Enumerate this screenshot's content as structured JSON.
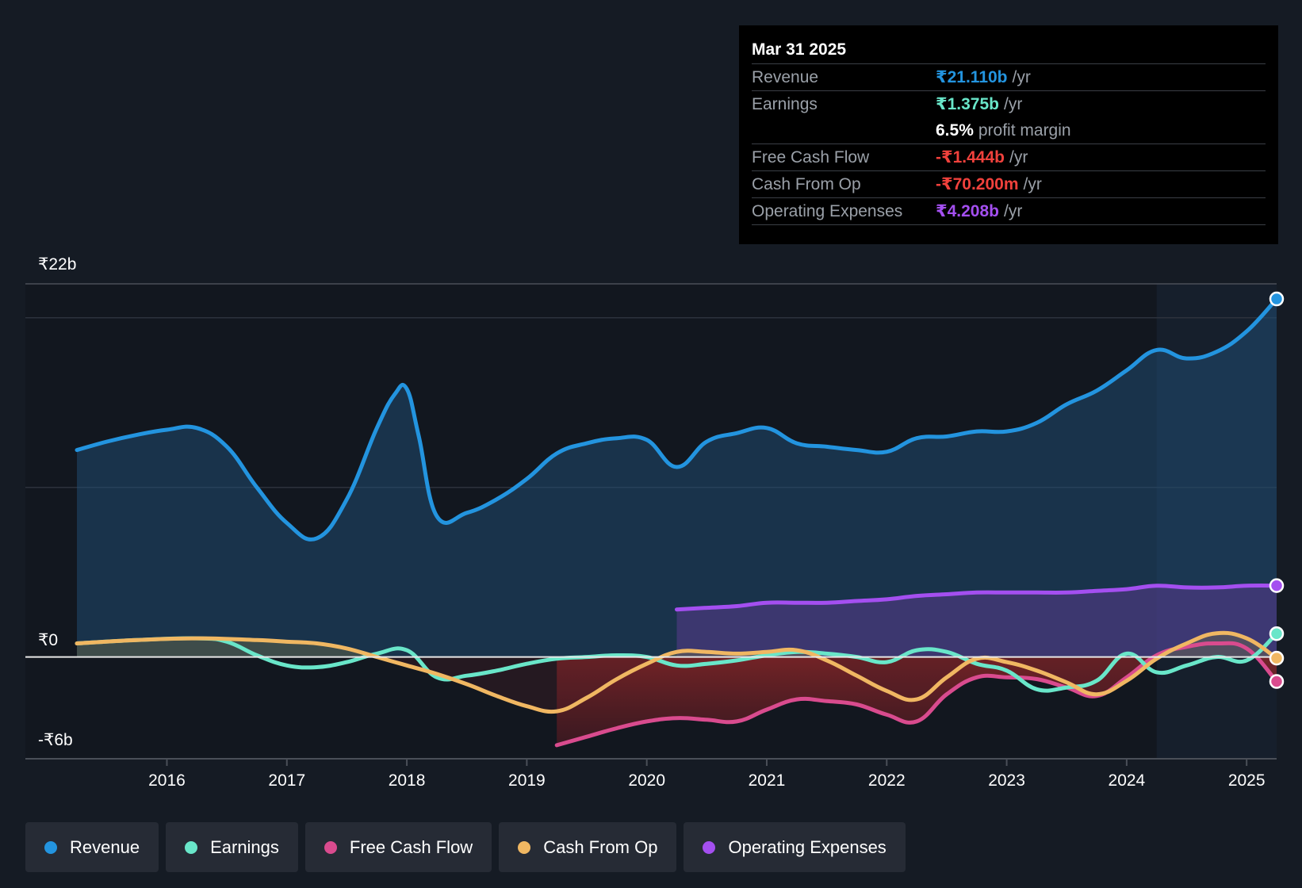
{
  "chart_data": {
    "type": "area",
    "currency": "₹",
    "y_unit": "b",
    "ylim": [
      -6,
      22
    ],
    "ylabels": [
      {
        "value": 22,
        "label": "₹22b"
      },
      {
        "value": 0,
        "label": "₹0"
      },
      {
        "value": -6,
        "label": "-₹6b"
      }
    ],
    "xlim": [
      2015.25,
      2025.25
    ],
    "xticks": [
      {
        "value": 2016,
        "label": "2016"
      },
      {
        "value": 2017,
        "label": "2017"
      },
      {
        "value": 2018,
        "label": "2018"
      },
      {
        "value": 2019,
        "label": "2019"
      },
      {
        "value": 2020,
        "label": "2020"
      },
      {
        "value": 2021,
        "label": "2021"
      },
      {
        "value": 2022,
        "label": "2022"
      },
      {
        "value": 2023,
        "label": "2023"
      },
      {
        "value": 2024,
        "label": "2024"
      },
      {
        "value": 2025,
        "label": "2025"
      }
    ],
    "highlight_start": 2024.25,
    "series": [
      {
        "key": "revenue",
        "name": "Revenue",
        "color": "#2394df",
        "fill": true,
        "points": [
          [
            2015.25,
            12.2
          ],
          [
            2015.5,
            12.7
          ],
          [
            2015.75,
            13.1
          ],
          [
            2016.0,
            13.4
          ],
          [
            2016.25,
            13.5
          ],
          [
            2016.5,
            12.4
          ],
          [
            2016.75,
            10.0
          ],
          [
            2017.0,
            7.9
          ],
          [
            2017.25,
            7.0
          ],
          [
            2017.5,
            9.3
          ],
          [
            2017.75,
            13.5
          ],
          [
            2017.9,
            15.5
          ],
          [
            2018.0,
            15.8
          ],
          [
            2018.1,
            13.0
          ],
          [
            2018.25,
            8.3
          ],
          [
            2018.5,
            8.5
          ],
          [
            2018.75,
            9.3
          ],
          [
            2019.0,
            10.5
          ],
          [
            2019.25,
            12.0
          ],
          [
            2019.5,
            12.6
          ],
          [
            2019.75,
            12.9
          ],
          [
            2020.0,
            12.8
          ],
          [
            2020.25,
            11.2
          ],
          [
            2020.5,
            12.7
          ],
          [
            2020.75,
            13.2
          ],
          [
            2021.0,
            13.5
          ],
          [
            2021.25,
            12.6
          ],
          [
            2021.5,
            12.4
          ],
          [
            2021.75,
            12.2
          ],
          [
            2022.0,
            12.1
          ],
          [
            2022.25,
            12.9
          ],
          [
            2022.5,
            13.0
          ],
          [
            2022.75,
            13.3
          ],
          [
            2023.0,
            13.3
          ],
          [
            2023.25,
            13.8
          ],
          [
            2023.5,
            14.9
          ],
          [
            2023.75,
            15.7
          ],
          [
            2024.0,
            16.9
          ],
          [
            2024.25,
            18.1
          ],
          [
            2024.5,
            17.6
          ],
          [
            2024.75,
            18.0
          ],
          [
            2025.0,
            19.2
          ],
          [
            2025.25,
            21.11
          ]
        ]
      },
      {
        "key": "earnings",
        "name": "Earnings",
        "color": "#69e6c9",
        "fill": false,
        "points": [
          [
            2015.25,
            0.8
          ],
          [
            2015.75,
            1.0
          ],
          [
            2016.25,
            1.1
          ],
          [
            2016.5,
            0.9
          ],
          [
            2016.75,
            0.1
          ],
          [
            2017.0,
            -0.5
          ],
          [
            2017.25,
            -0.6
          ],
          [
            2017.5,
            -0.3
          ],
          [
            2017.75,
            0.2
          ],
          [
            2018.0,
            0.4
          ],
          [
            2018.25,
            -1.2
          ],
          [
            2018.5,
            -1.1
          ],
          [
            2018.75,
            -0.8
          ],
          [
            2019.0,
            -0.4
          ],
          [
            2019.25,
            -0.1
          ],
          [
            2019.5,
            0.0
          ],
          [
            2019.75,
            0.1
          ],
          [
            2020.0,
            0.0
          ],
          [
            2020.25,
            -0.5
          ],
          [
            2020.5,
            -0.4
          ],
          [
            2020.75,
            -0.2
          ],
          [
            2021.0,
            0.1
          ],
          [
            2021.25,
            0.3
          ],
          [
            2021.5,
            0.2
          ],
          [
            2021.75,
            0.0
          ],
          [
            2022.0,
            -0.3
          ],
          [
            2022.25,
            0.4
          ],
          [
            2022.5,
            0.3
          ],
          [
            2022.75,
            -0.4
          ],
          [
            2023.0,
            -0.8
          ],
          [
            2023.25,
            -1.9
          ],
          [
            2023.5,
            -1.8
          ],
          [
            2023.75,
            -1.4
          ],
          [
            2024.0,
            0.2
          ],
          [
            2024.25,
            -0.9
          ],
          [
            2024.5,
            -0.5
          ],
          [
            2024.75,
            0.0
          ],
          [
            2025.0,
            -0.2
          ],
          [
            2025.25,
            1.375
          ]
        ]
      },
      {
        "key": "fcf",
        "name": "Free Cash Flow",
        "color": "#d94b8e",
        "fill": true,
        "points": [
          [
            2019.25,
            -5.2
          ],
          [
            2019.5,
            -4.7
          ],
          [
            2019.75,
            -4.2
          ],
          [
            2020.0,
            -3.8
          ],
          [
            2020.25,
            -3.6
          ],
          [
            2020.5,
            -3.7
          ],
          [
            2020.75,
            -3.8
          ],
          [
            2021.0,
            -3.1
          ],
          [
            2021.25,
            -2.5
          ],
          [
            2021.5,
            -2.6
          ],
          [
            2021.75,
            -2.8
          ],
          [
            2022.0,
            -3.4
          ],
          [
            2022.25,
            -3.8
          ],
          [
            2022.5,
            -2.2
          ],
          [
            2022.75,
            -1.2
          ],
          [
            2023.0,
            -1.2
          ],
          [
            2023.25,
            -1.3
          ],
          [
            2023.5,
            -1.8
          ],
          [
            2023.75,
            -2.3
          ],
          [
            2024.0,
            -1.2
          ],
          [
            2024.25,
            0.1
          ],
          [
            2024.5,
            0.6
          ],
          [
            2024.75,
            0.8
          ],
          [
            2025.0,
            0.5
          ],
          [
            2025.25,
            -1.444
          ]
        ]
      },
      {
        "key": "cfo",
        "name": "Cash From Op",
        "color": "#f0b762",
        "fill": true,
        "points": [
          [
            2015.25,
            0.8
          ],
          [
            2015.75,
            1.0
          ],
          [
            2016.25,
            1.1
          ],
          [
            2016.75,
            1.0
          ],
          [
            2017.0,
            0.9
          ],
          [
            2017.25,
            0.8
          ],
          [
            2017.5,
            0.5
          ],
          [
            2017.75,
            0.0
          ],
          [
            2018.0,
            -0.5
          ],
          [
            2018.25,
            -1.0
          ],
          [
            2018.5,
            -1.6
          ],
          [
            2018.75,
            -2.3
          ],
          [
            2019.0,
            -2.9
          ],
          [
            2019.25,
            -3.2
          ],
          [
            2019.5,
            -2.4
          ],
          [
            2019.75,
            -1.3
          ],
          [
            2020.0,
            -0.4
          ],
          [
            2020.25,
            0.3
          ],
          [
            2020.5,
            0.3
          ],
          [
            2020.75,
            0.2
          ],
          [
            2021.0,
            0.3
          ],
          [
            2021.25,
            0.4
          ],
          [
            2021.5,
            -0.2
          ],
          [
            2021.75,
            -1.1
          ],
          [
            2022.0,
            -2.0
          ],
          [
            2022.25,
            -2.5
          ],
          [
            2022.5,
            -1.2
          ],
          [
            2022.75,
            -0.1
          ],
          [
            2023.0,
            -0.3
          ],
          [
            2023.25,
            -0.8
          ],
          [
            2023.5,
            -1.5
          ],
          [
            2023.75,
            -2.2
          ],
          [
            2024.0,
            -1.4
          ],
          [
            2024.25,
            -0.1
          ],
          [
            2024.5,
            0.8
          ],
          [
            2024.75,
            1.4
          ],
          [
            2025.0,
            1.1
          ],
          [
            2025.25,
            -0.0702
          ]
        ]
      },
      {
        "key": "opex",
        "name": "Operating Expenses",
        "color": "#a44ff0",
        "fill": true,
        "points": [
          [
            2020.25,
            2.8
          ],
          [
            2020.5,
            2.9
          ],
          [
            2020.75,
            3.0
          ],
          [
            2021.0,
            3.2
          ],
          [
            2021.25,
            3.2
          ],
          [
            2021.5,
            3.2
          ],
          [
            2021.75,
            3.3
          ],
          [
            2022.0,
            3.4
          ],
          [
            2022.25,
            3.6
          ],
          [
            2022.5,
            3.7
          ],
          [
            2022.75,
            3.8
          ],
          [
            2023.0,
            3.8
          ],
          [
            2023.25,
            3.8
          ],
          [
            2023.5,
            3.8
          ],
          [
            2023.75,
            3.9
          ],
          [
            2024.0,
            4.0
          ],
          [
            2024.25,
            4.2
          ],
          [
            2024.5,
            4.1
          ],
          [
            2024.75,
            4.1
          ],
          [
            2025.0,
            4.2
          ],
          [
            2025.25,
            4.208
          ]
        ]
      }
    ]
  },
  "tooltip": {
    "date": "Mar 31 2025",
    "rows": [
      {
        "label": "Revenue",
        "value": "₹21.110b",
        "unit": "/yr",
        "color": "#2394df"
      },
      {
        "label": "Earnings",
        "value": "₹1.375b",
        "unit": "/yr",
        "color": "#69e6c9"
      },
      {
        "label": "",
        "value": "6.5%",
        "unit": "profit margin",
        "color": "#ffffff"
      },
      {
        "label": "Free Cash Flow",
        "value": "-₹1.444b",
        "unit": "/yr",
        "color": "#f0413c"
      },
      {
        "label": "Cash From Op",
        "value": "-₹70.200m",
        "unit": "/yr",
        "color": "#f0413c"
      },
      {
        "label": "Operating Expenses",
        "value": "₹4.208b",
        "unit": "/yr",
        "color": "#a44ff0"
      }
    ]
  },
  "legend": [
    {
      "label": "Revenue",
      "color": "#2394df"
    },
    {
      "label": "Earnings",
      "color": "#69e6c9"
    },
    {
      "label": "Free Cash Flow",
      "color": "#d94b8e"
    },
    {
      "label": "Cash From Op",
      "color": "#f0b762"
    },
    {
      "label": "Operating Expenses",
      "color": "#a44ff0"
    }
  ]
}
